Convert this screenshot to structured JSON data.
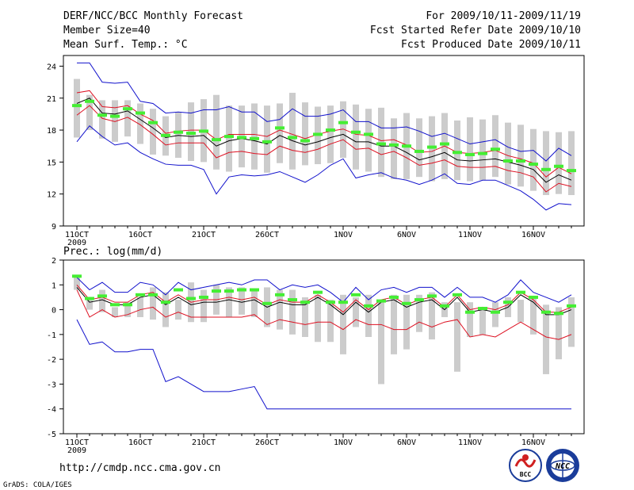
{
  "header": {
    "title": "DERF/NCC/BCC Monthly Forecast",
    "member_size": "Member Size=40",
    "variable": "Mean Surf. Temp.: °C",
    "period": "For 2009/10/11-2009/11/19",
    "start_ref": "Fcst Started Refer Date 2009/10/10",
    "produced": "Fcst Produced Date 2009/10/11"
  },
  "footer": {
    "url": "http://cmdp.ncc.cma.gov.cn",
    "grads": "GrADS: COLA/IGES",
    "logo_bcc": "BCC",
    "logo_ncc": "NCC"
  },
  "colors": {
    "box": "#cccccc",
    "obs": "#44ee33",
    "mean": "#000000",
    "inner": "#dd1122",
    "outer": "#1111cc"
  },
  "chart_data": [
    {
      "type": "line",
      "title": "Mean Surf. Temp.: °C",
      "ylim": [
        9,
        25
      ],
      "yticks": [
        9,
        12,
        15,
        18,
        21,
        24
      ],
      "xticks": [
        {
          "day": 1,
          "label": "11OCT"
        },
        {
          "day": 6,
          "label": "16OCT"
        },
        {
          "day": 11,
          "label": "21OCT"
        },
        {
          "day": 16,
          "label": "26OCT"
        },
        {
          "day": 22,
          "label": "1NOV"
        },
        {
          "day": 27,
          "label": "6NOV"
        },
        {
          "day": 32,
          "label": "11NOV"
        },
        {
          "day": 37,
          "label": "16NOV"
        }
      ],
      "xlabel_year": "2009",
      "x": [
        1,
        2,
        3,
        4,
        5,
        6,
        7,
        8,
        9,
        10,
        11,
        12,
        13,
        14,
        15,
        16,
        17,
        18,
        19,
        20,
        21,
        22,
        23,
        24,
        25,
        26,
        27,
        28,
        29,
        30,
        31,
        32,
        33,
        34,
        35,
        36,
        37,
        38,
        39,
        40
      ],
      "box_low": [
        17.3,
        18.0,
        17.2,
        16.9,
        17.4,
        16.7,
        15.7,
        15.6,
        15.4,
        15.1,
        15.0,
        14.3,
        14.1,
        14.5,
        14.3,
        14.0,
        14.9,
        14.3,
        14.7,
        14.8,
        14.9,
        15.4,
        14.3,
        14.1,
        13.6,
        13.4,
        13.4,
        13.6,
        13.2,
        13.4,
        13.3,
        13.2,
        13.3,
        13.6,
        12.9,
        12.7,
        12.3,
        11.9,
        12.0,
        11.9
      ],
      "box_high": [
        22.8,
        21.3,
        20.8,
        20.8,
        20.8,
        20.5,
        20.0,
        19.3,
        19.7,
        20.6,
        20.9,
        21.3,
        20.3,
        20.3,
        20.5,
        20.3,
        20.5,
        21.5,
        20.6,
        20.2,
        20.3,
        20.7,
        20.4,
        20.0,
        20.1,
        19.1,
        19.6,
        19.1,
        19.3,
        19.6,
        18.9,
        19.2,
        19.0,
        19.4,
        18.7,
        18.5,
        18.1,
        17.9,
        17.8,
        17.9
      ],
      "mean": [
        20.5,
        21.0,
        19.6,
        19.5,
        19.8,
        19.0,
        18.2,
        17.3,
        17.5,
        17.4,
        17.5,
        16.5,
        17.0,
        17.2,
        17.0,
        16.7,
        17.5,
        17.0,
        16.6,
        16.9,
        17.3,
        17.6,
        16.9,
        16.9,
        16.5,
        16.5,
        15.9,
        15.2,
        15.5,
        15.9,
        15.2,
        15.1,
        15.2,
        15.3,
        15.0,
        14.7,
        14.3,
        13.1,
        13.8,
        13.3
      ],
      "inner_high": [
        21.5,
        21.7,
        20.2,
        20.1,
        20.3,
        19.5,
        18.9,
        17.7,
        17.9,
        18.0,
        18.0,
        17.1,
        17.6,
        17.6,
        17.6,
        17.4,
        18.0,
        17.6,
        17.2,
        17.6,
        17.9,
        18.1,
        17.6,
        17.5,
        17.0,
        17.1,
        16.6,
        15.9,
        16.0,
        16.5,
        15.9,
        15.8,
        15.9,
        16.1,
        15.6,
        15.3,
        14.9,
        13.6,
        14.5,
        13.9
      ],
      "inner_low": [
        19.4,
        20.3,
        19.1,
        18.8,
        19.2,
        18.5,
        17.6,
        16.6,
        16.8,
        16.8,
        16.8,
        15.4,
        15.9,
        16.0,
        15.8,
        15.7,
        16.5,
        16.1,
        15.9,
        16.2,
        16.7,
        17.1,
        16.2,
        16.3,
        15.7,
        16.0,
        15.4,
        14.7,
        14.9,
        15.2,
        14.6,
        14.5,
        14.5,
        14.6,
        14.2,
        14.0,
        13.6,
        12.2,
        13.0,
        12.7
      ],
      "outer_high": [
        24.3,
        24.3,
        22.5,
        22.4,
        22.5,
        20.7,
        20.5,
        19.6,
        19.7,
        19.6,
        19.9,
        19.9,
        20.2,
        19.7,
        19.7,
        18.8,
        19.0,
        20.0,
        19.3,
        19.3,
        19.5,
        19.9,
        18.8,
        18.8,
        18.2,
        18.2,
        18.3,
        17.9,
        17.4,
        17.7,
        17.2,
        16.7,
        16.9,
        17.1,
        16.4,
        16.0,
        16.1,
        15.1,
        16.3,
        15.6
      ],
      "outer_low": [
        16.9,
        18.4,
        17.4,
        16.6,
        16.8,
        15.9,
        15.3,
        14.8,
        14.7,
        14.7,
        14.3,
        12.0,
        13.6,
        13.8,
        13.7,
        13.8,
        14.1,
        13.6,
        13.1,
        13.8,
        14.7,
        15.3,
        13.5,
        13.8,
        14.0,
        13.5,
        13.3,
        12.9,
        13.3,
        13.9,
        13.0,
        12.9,
        13.3,
        13.3,
        12.8,
        12.3,
        11.5,
        10.5,
        11.1,
        11.0
      ],
      "observed": [
        20.3,
        20.7,
        19.4,
        19.3,
        20.0,
        19.6,
        18.7,
        17.5,
        17.8,
        17.7,
        17.9,
        17.1,
        17.4,
        17.3,
        17.2,
        16.9,
        18.2,
        17.3,
        17.0,
        17.6,
        18.0,
        18.7,
        17.8,
        17.6,
        16.7,
        16.6,
        16.5,
        16.0,
        16.4,
        16.7,
        15.9,
        15.7,
        15.8,
        16.2,
        15.1,
        15.1,
        14.8,
        14.3,
        14.6,
        14.2
      ]
    },
    {
      "type": "line",
      "title": "Prec.: log(mm/d)",
      "ylim": [
        -5,
        2
      ],
      "yticks": [
        -5,
        -4,
        -3,
        -2,
        -1,
        0,
        1,
        2
      ],
      "xticks": [
        {
          "day": 1,
          "label": "11OCT"
        },
        {
          "day": 6,
          "label": "16OCT"
        },
        {
          "day": 11,
          "label": "21OCT"
        },
        {
          "day": 16,
          "label": "26OCT"
        },
        {
          "day": 22,
          "label": "1NOV"
        },
        {
          "day": 27,
          "label": "6NOV"
        },
        {
          "day": 32,
          "label": "11NOV"
        },
        {
          "day": 37,
          "label": "16NOV"
        }
      ],
      "xlabel_year": "2009",
      "x": [
        1,
        2,
        3,
        4,
        5,
        6,
        7,
        8,
        9,
        10,
        11,
        12,
        13,
        14,
        15,
        16,
        17,
        18,
        19,
        20,
        21,
        22,
        23,
        24,
        25,
        26,
        27,
        28,
        29,
        30,
        31,
        32,
        33,
        34,
        35,
        36,
        37,
        38,
        39,
        40
      ],
      "box_low": [
        0.8,
        0.0,
        -0.1,
        -0.3,
        -0.3,
        -0.3,
        -0.4,
        -0.7,
        -0.4,
        -0.5,
        -0.5,
        -0.2,
        -0.3,
        -0.2,
        -0.3,
        -0.7,
        -0.8,
        -1.0,
        -1.1,
        -1.3,
        -1.3,
        -1.8,
        -0.7,
        -1.1,
        -3.0,
        -1.8,
        -1.6,
        -0.9,
        -1.2,
        -0.3,
        -2.5,
        -1.1,
        -1.0,
        -0.7,
        -0.3,
        -0.5,
        -1.0,
        -2.6,
        -2.0,
        -1.5
      ],
      "box_high": [
        1.4,
        0.4,
        0.8,
        0.1,
        0.3,
        0.5,
        0.9,
        0.7,
        0.4,
        1.1,
        0.8,
        1.0,
        0.9,
        0.9,
        0.8,
        0.9,
        0.8,
        0.8,
        0.5,
        0.6,
        0.4,
        0.6,
        0.5,
        0.6,
        0.4,
        0.6,
        0.6,
        0.6,
        0.7,
        0.3,
        0.3,
        0.3,
        0.0,
        0.3,
        0.5,
        0.4,
        0.5,
        0.2,
        0.1,
        0.5
      ],
      "mean": [
        0.9,
        0.3,
        0.4,
        0.2,
        0.2,
        0.5,
        0.6,
        0.2,
        0.5,
        0.2,
        0.3,
        0.3,
        0.4,
        0.3,
        0.4,
        0.1,
        0.3,
        0.2,
        0.2,
        0.5,
        0.2,
        -0.2,
        0.3,
        -0.1,
        0.3,
        0.4,
        0.1,
        0.3,
        0.4,
        0.0,
        0.5,
        -0.1,
        0.0,
        -0.1,
        0.1,
        0.6,
        0.3,
        -0.2,
        -0.2,
        0.0
      ],
      "inner_high": [
        1.0,
        0.4,
        0.5,
        0.3,
        0.3,
        0.6,
        0.7,
        0.3,
        0.6,
        0.3,
        0.4,
        0.4,
        0.5,
        0.4,
        0.5,
        0.2,
        0.4,
        0.3,
        0.3,
        0.6,
        0.3,
        -0.1,
        0.4,
        0.0,
        0.4,
        0.5,
        0.2,
        0.4,
        0.5,
        0.1,
        0.6,
        0.0,
        0.1,
        0.0,
        0.2,
        0.7,
        0.4,
        -0.1,
        -0.1,
        0.1
      ],
      "inner_low": [
        0.8,
        -0.3,
        0.0,
        -0.3,
        -0.2,
        0.0,
        0.1,
        -0.3,
        -0.1,
        -0.3,
        -0.3,
        -0.3,
        -0.3,
        -0.3,
        -0.2,
        -0.6,
        -0.4,
        -0.5,
        -0.6,
        -0.5,
        -0.5,
        -0.8,
        -0.4,
        -0.6,
        -0.6,
        -0.8,
        -0.8,
        -0.5,
        -0.7,
        -0.5,
        -0.4,
        -1.1,
        -1.0,
        -1.1,
        -0.8,
        -0.5,
        -0.8,
        -1.1,
        -1.2,
        -1.0
      ],
      "outer_high": [
        1.3,
        0.8,
        1.1,
        0.7,
        0.7,
        1.1,
        1.0,
        0.6,
        1.1,
        0.8,
        0.9,
        1.0,
        1.1,
        1.0,
        1.2,
        1.2,
        0.8,
        1.0,
        0.9,
        1.0,
        0.7,
        0.3,
        0.9,
        0.4,
        0.8,
        0.9,
        0.7,
        0.9,
        0.9,
        0.5,
        0.9,
        0.5,
        0.5,
        0.3,
        0.6,
        1.2,
        0.7,
        0.5,
        0.3,
        0.6
      ],
      "outer_low": [
        -0.4,
        -1.4,
        -1.3,
        -1.7,
        -1.7,
        -1.6,
        -1.6,
        -2.9,
        -2.7,
        -3.0,
        -3.3,
        -3.3,
        -3.3,
        -3.2,
        -3.1,
        -4.0,
        -4.0,
        -4.0,
        -4.0,
        -4.0,
        -4.0,
        -4.0,
        -4.0,
        -4.0,
        -4.0,
        -4.0,
        -4.0,
        -4.0,
        -4.0,
        -4.0,
        -4.0,
        -4.0,
        -4.0,
        -4.0,
        -4.0,
        -4.0,
        -4.0,
        -4.0,
        -4.0,
        -4.0
      ],
      "observed": [
        1.35,
        0.45,
        0.55,
        0.2,
        0.2,
        0.6,
        0.6,
        0.3,
        0.8,
        0.45,
        0.5,
        0.75,
        0.75,
        0.8,
        0.8,
        0.25,
        0.6,
        0.4,
        0.3,
        0.7,
        0.3,
        0.3,
        0.6,
        0.15,
        0.35,
        0.5,
        0.25,
        0.4,
        0.55,
        0.15,
        0.6,
        -0.1,
        0.05,
        -0.1,
        0.3,
        0.7,
        0.5,
        -0.1,
        -0.15,
        0.15
      ]
    }
  ]
}
